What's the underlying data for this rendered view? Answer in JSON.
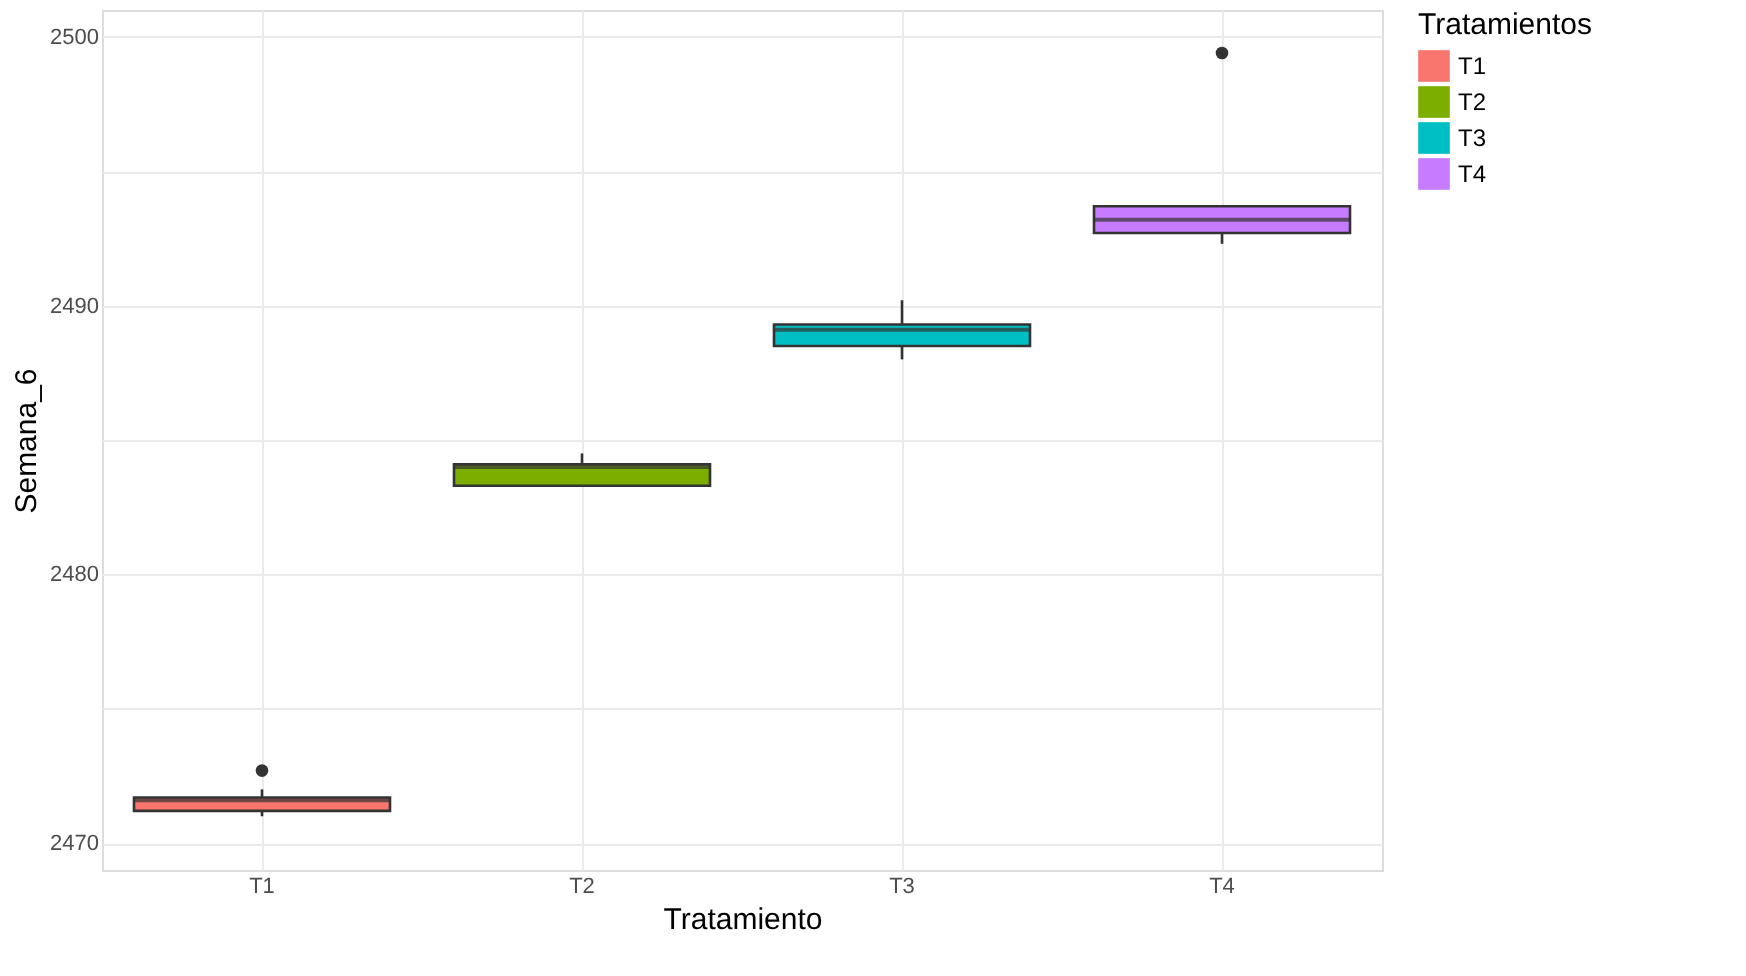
{
  "chart_data": {
    "type": "box",
    "xlabel": "Tratamiento",
    "ylabel": "Semana_6",
    "legend_title": "Tratamientos",
    "categories": [
      "T1",
      "T2",
      "T3",
      "T4"
    ],
    "series": [
      {
        "name": "T1",
        "color": "#f8766d",
        "boxes": [
          {
            "low": 2471.0,
            "q1": 2471.2,
            "median": 2471.6,
            "q3": 2471.7,
            "high": 2472.0,
            "outliers": [
              2472.7
            ]
          },
          null,
          null,
          null
        ]
      },
      {
        "name": "T2",
        "color": "#7cae00",
        "boxes": [
          null,
          {
            "low": 2483.3,
            "q1": 2483.3,
            "median": 2484.0,
            "q3": 2484.1,
            "high": 2484.5
          },
          null,
          null
        ]
      },
      {
        "name": "T3",
        "color": "#00bfc4",
        "boxes": [
          null,
          null,
          {
            "low": 2488.0,
            "q1": 2488.5,
            "median": 2489.1,
            "q3": 2489.3,
            "high": 2490.2
          },
          null
        ]
      },
      {
        "name": "T4",
        "color": "#c77cff",
        "boxes": [
          null,
          null,
          null,
          {
            "low": 2492.3,
            "q1": 2492.7,
            "median": 2493.2,
            "q3": 2493.7,
            "high": 2493.7,
            "outliers": [
              2499.4
            ]
          }
        ]
      }
    ],
    "ylim": [
      2469,
      2501
    ],
    "yticks": [
      2470,
      {
        "value": 2475,
        "label": null
      },
      2480,
      {
        "value": 2485,
        "label": null
      },
      2490,
      {
        "value": 2495,
        "label": null
      },
      2500
    ],
    "grid": true,
    "legend": "right"
  }
}
